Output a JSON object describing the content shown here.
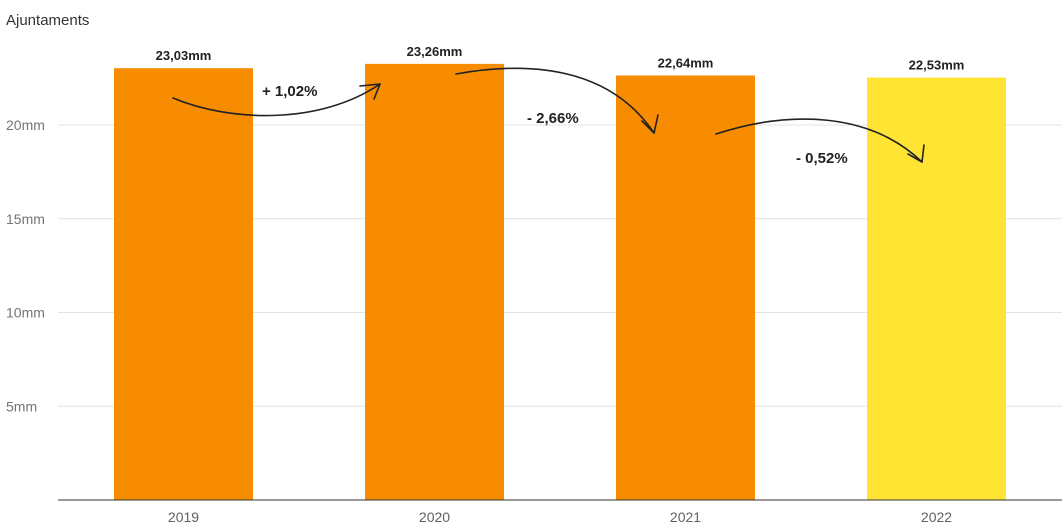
{
  "chart_data": {
    "type": "bar",
    "title": "Ajuntaments",
    "categories": [
      "2019",
      "2020",
      "2021",
      "2022"
    ],
    "values": [
      23.03,
      23.26,
      22.64,
      22.53
    ],
    "value_labels": [
      "23,03mm",
      "23,26mm",
      "22,64mm",
      "22,53mm"
    ],
    "yticks": [
      5,
      10,
      15,
      20
    ],
    "ytick_labels": [
      "5mm",
      "10mm",
      "15mm",
      "20mm"
    ],
    "ylim": [
      0,
      25
    ],
    "grid": true,
    "xlabel": "",
    "ylabel": "",
    "colors": [
      "#F78C00",
      "#F78C00",
      "#F78C00",
      "#FFE433"
    ],
    "annotations": [
      {
        "text": "+ 1,02%",
        "from": "2019",
        "to": "2020"
      },
      {
        "text": "- 2,66%",
        "from": "2020",
        "to": "2021"
      },
      {
        "text": "- 0,52%",
        "from": "2021",
        "to": "2022"
      }
    ]
  }
}
